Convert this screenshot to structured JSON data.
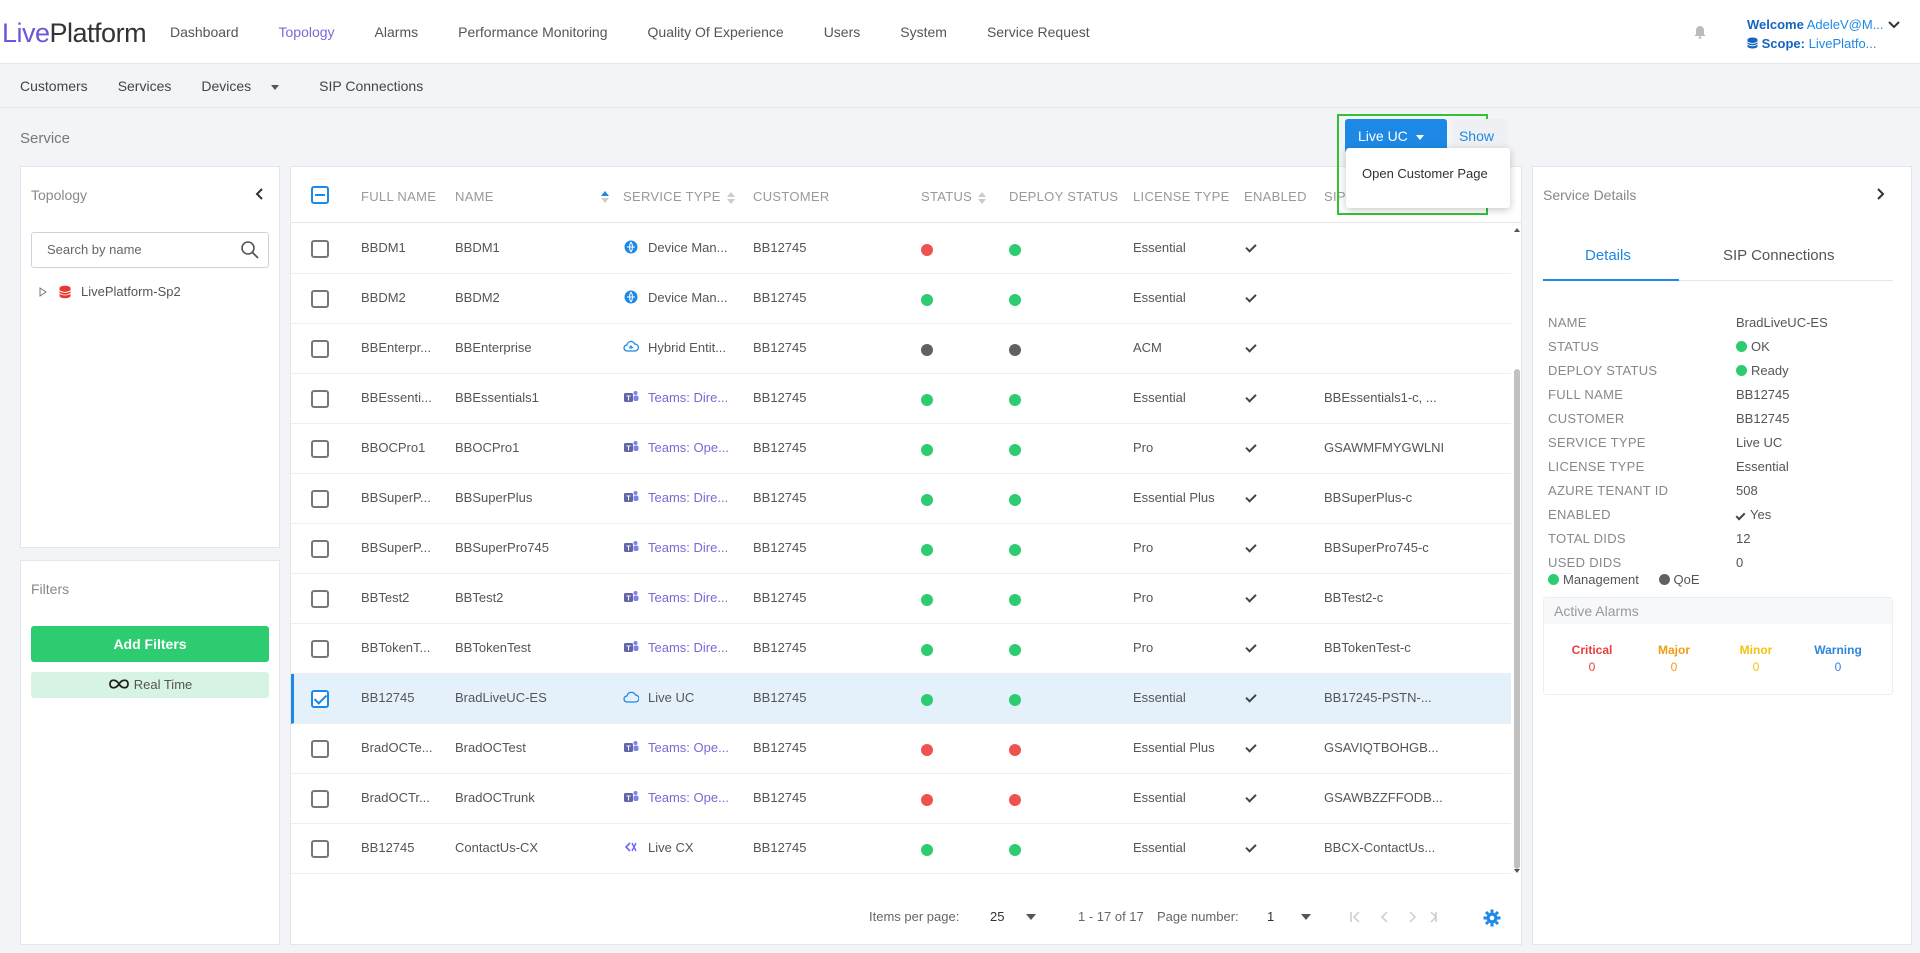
{
  "app": {
    "logo_prefix": "Live",
    "logo_suffix": "Platform"
  },
  "top_nav": [
    "Dashboard",
    "Topology",
    "Alarms",
    "Performance Monitoring",
    "Quality Of Experience",
    "Users",
    "System",
    "Service Request"
  ],
  "top_nav_active": "Topology",
  "user": {
    "welcome_label": "Welcome",
    "welcome_value": "AdeleV@M...",
    "scope_label": "Scope:",
    "scope_value": "LivePlatfo..."
  },
  "sub_nav": [
    "Customers",
    "Services",
    "Devices",
    "SIP Connections"
  ],
  "sub_nav_active": "Services",
  "page_title": "Service",
  "topology": {
    "title": "Topology",
    "search_placeholder": "Search by name",
    "tree_item": "LivePlatform-Sp2"
  },
  "filters": {
    "title": "Filters",
    "add_label": "Add Filters",
    "realtime_label": "Real Time"
  },
  "actions": {
    "live_uc_label": "Live UC",
    "show_label": "Show",
    "menu_item": "Open Customer Page"
  },
  "table": {
    "columns": {
      "full_name": "FULL NAME",
      "name": "NAME",
      "service_type": "SERVICE TYPE",
      "customer": "CUSTOMER",
      "status": "STATUS",
      "deploy_status": "DEPLOY STATUS",
      "license_type": "LICENSE TYPE",
      "enabled": "ENABLED",
      "sip": "SIP"
    },
    "status_colors": {
      "green": "#2ecc71",
      "red": "#ef5350",
      "grey": "#616161"
    },
    "rows": [
      {
        "full_name": "BBDM1",
        "name": "BBDM1",
        "service_type": "Device Man...",
        "icon": "globe-icon",
        "link": false,
        "customer": "BB12745",
        "status": "red",
        "deploy": "green",
        "license": "Essential",
        "enabled": true,
        "sip": "",
        "selected": false
      },
      {
        "full_name": "BBDM2",
        "name": "BBDM2",
        "service_type": "Device Man...",
        "icon": "globe-icon",
        "link": false,
        "customer": "BB12745",
        "status": "green",
        "deploy": "green",
        "license": "Essential",
        "enabled": true,
        "sip": "",
        "selected": false
      },
      {
        "full_name": "BBEnterpr...",
        "name": "BBEnterprise",
        "service_type": "Hybrid Entit...",
        "icon": "cloud-sync-icon",
        "link": false,
        "customer": "BB12745",
        "status": "grey",
        "deploy": "grey",
        "license": "ACM",
        "enabled": true,
        "sip": "",
        "selected": false
      },
      {
        "full_name": "BBEssenti...",
        "name": "BBEssentials1",
        "service_type": "Teams: Dire...",
        "icon": "teams-icon",
        "link": true,
        "customer": "BB12745",
        "status": "green",
        "deploy": "green",
        "license": "Essential",
        "enabled": true,
        "sip": "BBEssentials1-c, ...",
        "selected": false
      },
      {
        "full_name": "BBOCPro1",
        "name": "BBOCPro1",
        "service_type": "Teams: Ope...",
        "icon": "teams-icon",
        "link": true,
        "customer": "BB12745",
        "status": "green",
        "deploy": "green",
        "license": "Pro",
        "enabled": true,
        "sip": "GSAWMFMYGWLNI",
        "selected": false
      },
      {
        "full_name": "BBSuperP...",
        "name": "BBSuperPlus",
        "service_type": "Teams: Dire...",
        "icon": "teams-icon",
        "link": true,
        "customer": "BB12745",
        "status": "green",
        "deploy": "green",
        "license": "Essential Plus",
        "enabled": true,
        "sip": "BBSuperPlus-c",
        "selected": false
      },
      {
        "full_name": "BBSuperP...",
        "name": "BBSuperPro745",
        "service_type": "Teams: Dire...",
        "icon": "teams-icon",
        "link": true,
        "customer": "BB12745",
        "status": "green",
        "deploy": "green",
        "license": "Pro",
        "enabled": true,
        "sip": "BBSuperPro745-c",
        "selected": false
      },
      {
        "full_name": "BBTest2",
        "name": "BBTest2",
        "service_type": "Teams: Dire...",
        "icon": "teams-icon",
        "link": true,
        "customer": "BB12745",
        "status": "green",
        "deploy": "green",
        "license": "Pro",
        "enabled": true,
        "sip": "BBTest2-c",
        "selected": false
      },
      {
        "full_name": "BBTokenT...",
        "name": "BBTokenTest",
        "service_type": "Teams: Dire...",
        "icon": "teams-icon",
        "link": true,
        "customer": "BB12745",
        "status": "green",
        "deploy": "green",
        "license": "Pro",
        "enabled": true,
        "sip": "BBTokenTest-c",
        "selected": false
      },
      {
        "full_name": "BB12745",
        "name": "BradLiveUC-ES",
        "service_type": "Live UC",
        "icon": "cloud-icon",
        "link": false,
        "customer": "BB12745",
        "status": "green",
        "deploy": "green",
        "license": "Essential",
        "enabled": true,
        "sip": "BB17245-PSTN-...",
        "selected": true
      },
      {
        "full_name": "BradOCTe...",
        "name": "BradOCTest",
        "service_type": "Teams: Ope...",
        "icon": "teams-icon",
        "link": true,
        "customer": "BB12745",
        "status": "red",
        "deploy": "red",
        "license": "Essential Plus",
        "enabled": true,
        "sip": "GSAVIQTBOHGB...",
        "selected": false
      },
      {
        "full_name": "BradOCTr...",
        "name": "BradOCTrunk",
        "service_type": "Teams: Ope...",
        "icon": "teams-icon",
        "link": true,
        "customer": "BB12745",
        "status": "red",
        "deploy": "red",
        "license": "Essential",
        "enabled": true,
        "sip": "GSAWBZZFFODB...",
        "selected": false
      },
      {
        "full_name": "BB12745",
        "name": "ContactUs-CX",
        "service_type": "Live CX",
        "icon": "live-cx-icon",
        "link": false,
        "customer": "BB12745",
        "status": "green",
        "deploy": "green",
        "license": "Essential",
        "enabled": true,
        "sip": "BBCX-ContactUs...",
        "selected": false
      }
    ]
  },
  "pagination": {
    "items_per_page_label": "Items per page:",
    "items_per_page": "25",
    "range": "1 - 17 of 17",
    "page_number_label": "Page number:",
    "page_number": "1"
  },
  "details": {
    "title": "Service Details",
    "tabs": [
      "Details",
      "SIP Connections"
    ],
    "fields": [
      {
        "k": "NAME",
        "v": "BradLiveUC-ES"
      },
      {
        "k": "STATUS",
        "v": "OK",
        "dot": "green"
      },
      {
        "k": "DEPLOY STATUS",
        "v": "Ready",
        "dot": "green"
      },
      {
        "k": "FULL NAME",
        "v": "BB12745"
      },
      {
        "k": "CUSTOMER",
        "v": "BB12745"
      },
      {
        "k": "SERVICE TYPE",
        "v": "Live UC"
      },
      {
        "k": "LICENSE TYPE",
        "v": "Essential"
      },
      {
        "k": "AZURE TENANT ID",
        "v": "508"
      },
      {
        "k": "ENABLED",
        "v": "Yes",
        "check": true
      },
      {
        "k": "TOTAL DIDS",
        "v": "12"
      },
      {
        "k": "USED DIDS",
        "v": "0"
      }
    ],
    "legend": {
      "management": "Management",
      "qoe": "QoE"
    },
    "alarms_title": "Active Alarms",
    "alarms": [
      {
        "label": "Critical",
        "count": "0",
        "color": "#ef3b3b"
      },
      {
        "label": "Major",
        "count": "0",
        "color": "#f39c12"
      },
      {
        "label": "Minor",
        "count": "0",
        "color": "#f1c40f"
      },
      {
        "label": "Warning",
        "count": "0",
        "color": "#2e86de"
      }
    ]
  }
}
